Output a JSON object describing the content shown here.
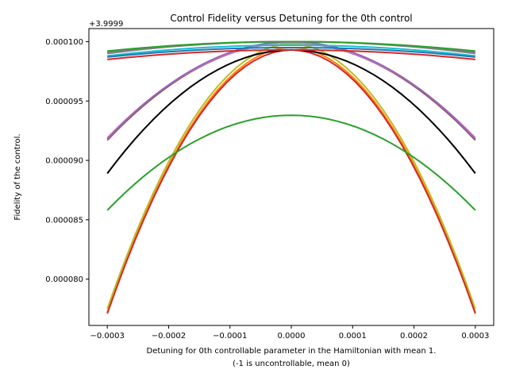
{
  "chart_data": {
    "type": "line",
    "title": "Control Fidelity versus Detuning for the 0th control",
    "xlabel_line1": "Detuning for 0th controllable parameter in the Hamiltonian with mean 1.",
    "xlabel_line2": "(-1 is uncontrollable, mean 0)",
    "ylabel": "Fidelity of the control.",
    "offset_label": "+3.9999",
    "y_offset": 3.9999,
    "xlim": [
      -0.00033,
      0.00033
    ],
    "ylim": [
      7.61e-05,
      0.0001011
    ],
    "x_ticks": [
      -0.0003,
      -0.0002,
      -0.0001,
      0,
      0.0001,
      0.0002,
      0.0003
    ],
    "x_tick_labels": [
      "−0.0003",
      "−0.0002",
      "−0.0001",
      "0.0000",
      "0.0001",
      "0.0002",
      "0.0003"
    ],
    "y_ticks": [
      8e-05,
      8.5e-05,
      9e-05,
      9.5e-05,
      0.0001
    ],
    "y_tick_labels": [
      "0.000080",
      "0.000085",
      "0.000090",
      "0.000095",
      "0.000100"
    ],
    "grid": false,
    "legend": "none",
    "series": [
      {
        "color": "#8c564b",
        "peak": 9.99e-05,
        "edge": 9.17e-05
      },
      {
        "color": "#e377c2",
        "peak": 9.99e-05,
        "edge": 9.19e-05
      },
      {
        "color": "#9467bd",
        "peak": 0.0001,
        "edge": 9.18e-05
      },
      {
        "color": "#ff7f0e",
        "peak": 9.95e-05,
        "edge": 7.72e-05
      },
      {
        "color": "#bcbd22",
        "peak": 9.98e-05,
        "edge": 7.75e-05
      },
      {
        "color": "#d62728",
        "peak": 9.93e-05,
        "edge": 7.71e-05
      },
      {
        "color": "#2ca02c",
        "peak": 9.38e-05,
        "edge": 8.58e-05
      },
      {
        "color": "#000000",
        "peak": 9.93e-05,
        "edge": 8.89e-05
      },
      {
        "color": "#17becf",
        "peak": 9.97e-05,
        "edge": 9.88e-05
      },
      {
        "color": "#1f77b4",
        "peak": 9.95e-05,
        "edge": 9.87e-05
      },
      {
        "color": "#9467bd",
        "peak": 0.0001,
        "edge": 9.91e-05
      },
      {
        "color": "#7f7f7f",
        "peak": 0.0001,
        "edge": 9.9e-05
      },
      {
        "color": "#2ca02c",
        "peak": 0.0001,
        "edge": 9.92e-05
      },
      {
        "color": "#d62728",
        "peak": 9.93e-05,
        "edge": 9.85e-05
      }
    ]
  }
}
